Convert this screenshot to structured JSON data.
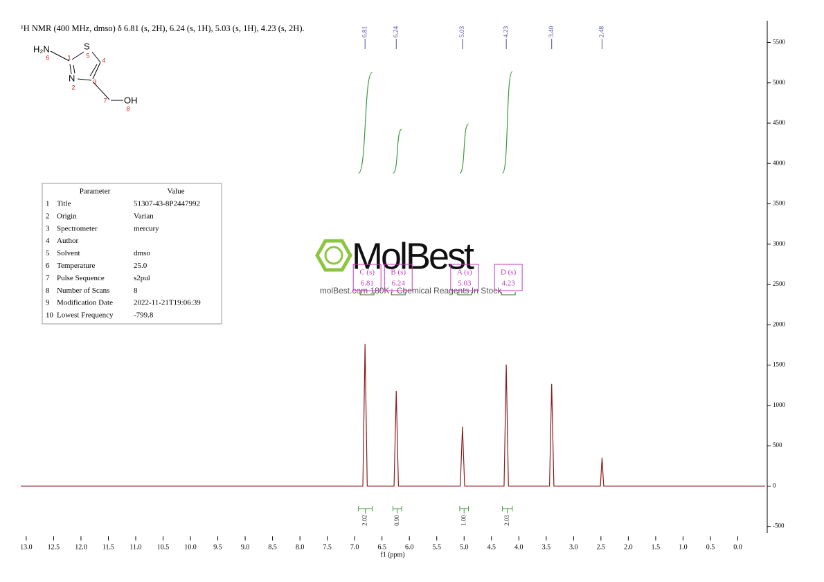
{
  "chart_data": {
    "type": "line",
    "title": "¹H NMR (400 MHz, dmso) δ 6.81 (s, 2H), 6.24 (s, 1H), 5.03 (s, 1H), 4.23 (s, 2H).",
    "xlabel": "f1 (ppm)",
    "xlim": [
      13.1,
      -0.5
    ],
    "ylim": [
      -580,
      5770
    ],
    "xticks": [
      {
        "value": 13,
        "label": "13.0"
      },
      12.5,
      {
        "value": 12,
        "label": "12.0"
      },
      11.5,
      {
        "value": 11,
        "label": "11.0"
      },
      10.5,
      {
        "value": 10,
        "label": "10.0"
      },
      9.5,
      {
        "value": 9,
        "label": "9.0"
      },
      8.5,
      {
        "value": 8,
        "label": "8.0"
      },
      7.5,
      {
        "value": 7,
        "label": "7.0"
      },
      6.5,
      {
        "value": 6,
        "label": "6.0"
      },
      5.5,
      {
        "value": 5,
        "label": "5.0"
      },
      4.5,
      {
        "value": 4,
        "label": "4.0"
      },
      3.5,
      {
        "value": 3,
        "label": "3.0"
      },
      2.5,
      {
        "value": 2,
        "label": "2.0"
      },
      1.5,
      {
        "value": 1,
        "label": "1.0"
      },
      0.5,
      {
        "value": 0,
        "label": "0.0"
      }
    ],
    "yticks": [
      -500,
      0,
      500,
      1000,
      1500,
      2000,
      2500,
      3000,
      3500,
      4000,
      4500,
      5000,
      5500
    ],
    "series": [
      {
        "color": "#8b1a1a",
        "x": [
          13.1,
          6.85,
          6.81,
          6.77,
          6.28,
          6.24,
          6.2,
          5.07,
          5.03,
          4.99,
          4.27,
          4.23,
          4.19,
          3.44,
          3.4,
          3.36,
          2.51,
          2.48,
          2.45,
          -0.5
        ],
        "values": [
          0,
          0,
          1764,
          0,
          0,
          1180,
          0,
          0,
          736,
          0,
          0,
          1507,
          0,
          0,
          1267,
          0,
          0,
          351,
          0,
          0
        ]
      }
    ],
    "peak_labels": [
      6.81,
      6.24,
      5.03,
      4.23,
      {
        "value": 3.4,
        "label": "3.40"
      },
      2.48
    ],
    "peak_label_color": "#4b4ba0",
    "multiplet_color": "#c03cc0",
    "multiplets": [
      {
        "name": "C (s)",
        "shift": 6.81
      },
      {
        "name": "B (s)",
        "shift": 6.24
      },
      {
        "name": "A (s)",
        "shift": 5.03
      },
      {
        "name": "D (s)",
        "shift": 4.23
      }
    ],
    "integrals": {
      "color": "#3a9a3a",
      "ranges": [
        [
          6.93,
          6.68
        ],
        [
          6.3,
          6.14
        ],
        [
          5.08,
          4.92
        ],
        [
          4.3,
          4.12
        ]
      ],
      "values": [
        2.02,
        0.9,
        1,
        2.03
      ],
      "value_labels": [
        "2.02",
        "0.90",
        "1.00",
        "2.03"
      ],
      "curve_base": 3880,
      "curve_tops": [
        5130,
        4425,
        4490,
        5140
      ]
    }
  },
  "molecule": {
    "atoms": [
      "H₂N",
      "S",
      "N",
      "OH"
    ],
    "numbers": [
      "1",
      "2",
      "3",
      "4",
      "5",
      "6",
      "7",
      "8"
    ]
  },
  "parameters": {
    "header": [
      "Parameter",
      "Value"
    ],
    "rows": [
      [
        "1",
        "Title",
        "51307-43-8P2447992"
      ],
      [
        "2",
        "Origin",
        "Varian"
      ],
      [
        "3",
        "Spectrometer",
        "mercury"
      ],
      [
        "4",
        "Author"
      ],
      [
        "5",
        "Solvent",
        "dmso"
      ],
      [
        "6",
        "Temperature",
        "25.0"
      ],
      [
        "7",
        "Pulse Sequence",
        "s2pul"
      ],
      [
        "8",
        "Number of Scans",
        "8"
      ],
      [
        "9",
        "Modification Date",
        "2022-11-21T19:06:39"
      ],
      [
        "10",
        "Lowest Frequency",
        "-799.8"
      ]
    ]
  },
  "watermark": {
    "brand": "MolBest",
    "tagline": "molBest.com 180K+ Chemical Reagents In Stock"
  }
}
